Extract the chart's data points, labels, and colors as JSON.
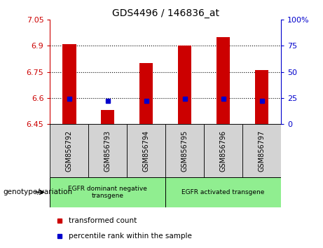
{
  "title": "GDS4496 / 146836_at",
  "samples": [
    "GSM856792",
    "GSM856793",
    "GSM856794",
    "GSM856795",
    "GSM856796",
    "GSM856797"
  ],
  "bar_values": [
    6.91,
    6.53,
    6.8,
    6.9,
    6.95,
    6.76
  ],
  "percentile_values": [
    6.595,
    6.585,
    6.585,
    6.595,
    6.595,
    6.585
  ],
  "bar_bottom": 6.45,
  "ylim": [
    6.45,
    7.05
  ],
  "yticks_left": [
    6.45,
    6.6,
    6.75,
    6.9,
    7.05
  ],
  "yticks_right": [
    0,
    25,
    50,
    75,
    100
  ],
  "bar_color": "#cc0000",
  "percentile_color": "#0000cc",
  "bar_width": 0.35,
  "left_yaxis_color": "#cc0000",
  "right_yaxis_color": "#0000cc",
  "sample_bg_color": "#d3d3d3",
  "genotype_bg_color": "#90ee90",
  "genotype_label": "genotype/variation",
  "group1_label": "EGFR dominant negative\ntransgene",
  "group2_label": "EGFR activated transgene",
  "legend_red_label": "transformed count",
  "legend_blue_label": "percentile rank within the sample"
}
